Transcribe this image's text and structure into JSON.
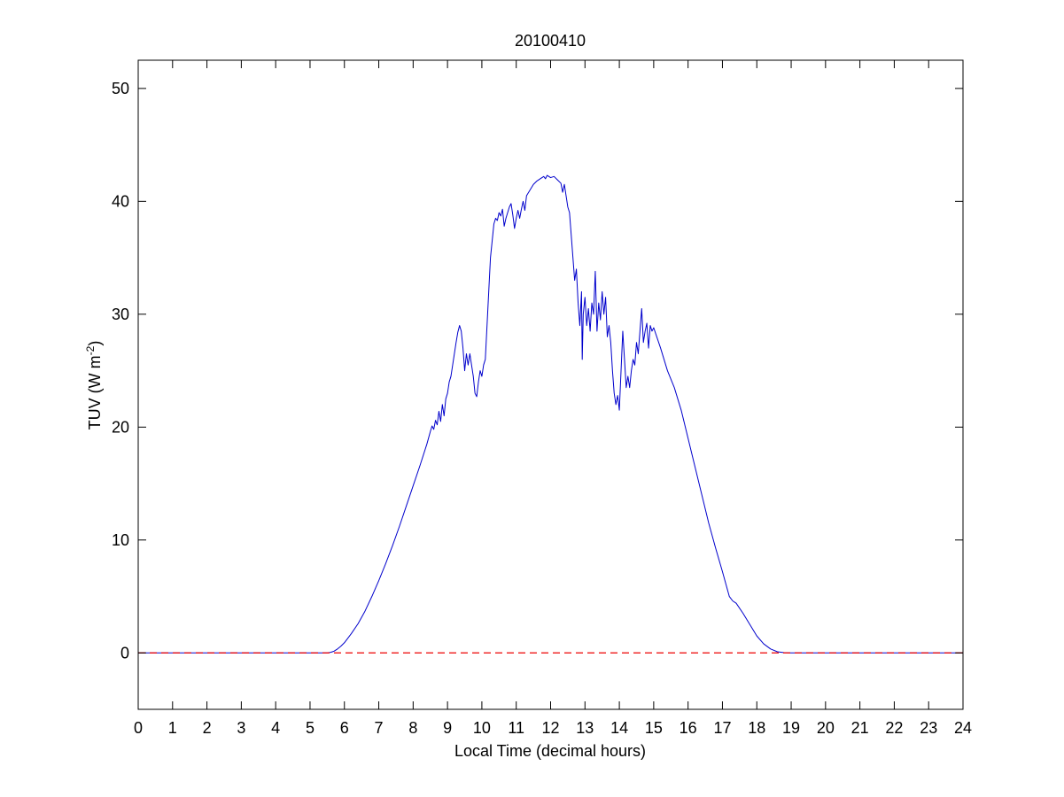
{
  "chart_data": {
    "type": "line",
    "title": "20100410",
    "xlabel": "Local Time (decimal hours)",
    "ylabel_main": "TUV (W m",
    "ylabel_sup": "-2",
    "ylabel_close": ")",
    "xlim": [
      0,
      24
    ],
    "ylim": [
      -5,
      52.5
    ],
    "xticks": [
      0,
      1,
      2,
      3,
      4,
      5,
      6,
      7,
      8,
      9,
      10,
      11,
      12,
      13,
      14,
      15,
      16,
      17,
      18,
      19,
      20,
      21,
      22,
      23,
      24
    ],
    "yticks": [
      0,
      10,
      20,
      30,
      40,
      50
    ],
    "grid": false,
    "series": [
      {
        "style": "solid",
        "color": "#0000cc",
        "points": [
          [
            0,
            0
          ],
          [
            5.0,
            0
          ],
          [
            5.5,
            0
          ],
          [
            5.6,
            0.05
          ],
          [
            5.7,
            0.15
          ],
          [
            5.8,
            0.35
          ],
          [
            5.9,
            0.6
          ],
          [
            6.0,
            0.9
          ],
          [
            6.2,
            1.7
          ],
          [
            6.4,
            2.6
          ],
          [
            6.6,
            3.7
          ],
          [
            6.8,
            5.0
          ],
          [
            7.0,
            6.4
          ],
          [
            7.2,
            7.9
          ],
          [
            7.4,
            9.5
          ],
          [
            7.6,
            11.2
          ],
          [
            7.8,
            13.0
          ],
          [
            8.0,
            14.8
          ],
          [
            8.2,
            16.6
          ],
          [
            8.4,
            18.5
          ],
          [
            8.5,
            19.6
          ],
          [
            8.55,
            20.1
          ],
          [
            8.6,
            19.8
          ],
          [
            8.65,
            20.6
          ],
          [
            8.7,
            20.2
          ],
          [
            8.75,
            21.4
          ],
          [
            8.8,
            20.5
          ],
          [
            8.85,
            22.0
          ],
          [
            8.9,
            21.0
          ],
          [
            8.95,
            22.5
          ],
          [
            9.0,
            23.0
          ],
          [
            9.05,
            24.0
          ],
          [
            9.1,
            24.5
          ],
          [
            9.15,
            25.5
          ],
          [
            9.2,
            26.5
          ],
          [
            9.25,
            27.5
          ],
          [
            9.3,
            28.4
          ],
          [
            9.35,
            29.0
          ],
          [
            9.4,
            28.5
          ],
          [
            9.45,
            27.0
          ],
          [
            9.5,
            25.0
          ],
          [
            9.55,
            26.5
          ],
          [
            9.6,
            25.5
          ],
          [
            9.65,
            26.5
          ],
          [
            9.7,
            25.5
          ],
          [
            9.75,
            24.5
          ],
          [
            9.8,
            23.0
          ],
          [
            9.85,
            22.7
          ],
          [
            9.9,
            24.0
          ],
          [
            9.95,
            25.0
          ],
          [
            10.0,
            24.5
          ],
          [
            10.05,
            25.5
          ],
          [
            10.1,
            26.0
          ],
          [
            10.15,
            29.0
          ],
          [
            10.2,
            32.0
          ],
          [
            10.25,
            35.0
          ],
          [
            10.3,
            36.5
          ],
          [
            10.35,
            38.0
          ],
          [
            10.4,
            38.5
          ],
          [
            10.45,
            38.3
          ],
          [
            10.5,
            39.0
          ],
          [
            10.55,
            38.7
          ],
          [
            10.6,
            39.3
          ],
          [
            10.65,
            37.8
          ],
          [
            10.7,
            38.5
          ],
          [
            10.8,
            39.5
          ],
          [
            10.85,
            39.8
          ],
          [
            10.9,
            38.8
          ],
          [
            10.95,
            37.6
          ],
          [
            11.0,
            38.5
          ],
          [
            11.05,
            39.2
          ],
          [
            11.1,
            38.5
          ],
          [
            11.15,
            39.3
          ],
          [
            11.2,
            40.0
          ],
          [
            11.25,
            39.2
          ],
          [
            11.3,
            40.5
          ],
          [
            11.4,
            41.0
          ],
          [
            11.5,
            41.5
          ],
          [
            11.6,
            41.8
          ],
          [
            11.7,
            42.0
          ],
          [
            11.8,
            42.2
          ],
          [
            11.85,
            42.0
          ],
          [
            11.9,
            42.3
          ],
          [
            12.0,
            42.1
          ],
          [
            12.1,
            42.2
          ],
          [
            12.2,
            41.9
          ],
          [
            12.3,
            41.6
          ],
          [
            12.35,
            40.8
          ],
          [
            12.4,
            41.5
          ],
          [
            12.45,
            40.5
          ],
          [
            12.5,
            39.5
          ],
          [
            12.55,
            39.0
          ],
          [
            12.6,
            37.0
          ],
          [
            12.65,
            35.0
          ],
          [
            12.7,
            33.0
          ],
          [
            12.75,
            34.0
          ],
          [
            12.8,
            31.0
          ],
          [
            12.85,
            29.0
          ],
          [
            12.9,
            32.0
          ],
          [
            12.92,
            26.0
          ],
          [
            12.95,
            30.0
          ],
          [
            13.0,
            31.5
          ],
          [
            13.05,
            29.0
          ],
          [
            13.1,
            30.5
          ],
          [
            13.15,
            28.5
          ],
          [
            13.2,
            31.0
          ],
          [
            13.25,
            30.0
          ],
          [
            13.3,
            33.8
          ],
          [
            13.35,
            28.5
          ],
          [
            13.4,
            31.0
          ],
          [
            13.45,
            29.5
          ],
          [
            13.5,
            32.0
          ],
          [
            13.55,
            30.0
          ],
          [
            13.6,
            31.5
          ],
          [
            13.65,
            28.0
          ],
          [
            13.7,
            29.0
          ],
          [
            13.75,
            27.5
          ],
          [
            13.8,
            25.0
          ],
          [
            13.85,
            23.0
          ],
          [
            13.9,
            22.0
          ],
          [
            13.95,
            22.8
          ],
          [
            14.0,
            21.5
          ],
          [
            14.05,
            25.0
          ],
          [
            14.1,
            28.5
          ],
          [
            14.15,
            26.0
          ],
          [
            14.2,
            23.5
          ],
          [
            14.25,
            24.5
          ],
          [
            14.3,
            23.5
          ],
          [
            14.35,
            25.0
          ],
          [
            14.4,
            26.0
          ],
          [
            14.45,
            25.5
          ],
          [
            14.5,
            27.5
          ],
          [
            14.55,
            26.5
          ],
          [
            14.6,
            28.5
          ],
          [
            14.65,
            30.5
          ],
          [
            14.7,
            27.5
          ],
          [
            14.75,
            28.5
          ],
          [
            14.8,
            29.2
          ],
          [
            14.85,
            27.0
          ],
          [
            14.9,
            29.0
          ],
          [
            14.95,
            28.5
          ],
          [
            15.0,
            28.8
          ],
          [
            15.2,
            27.0
          ],
          [
            15.4,
            25.0
          ],
          [
            15.6,
            23.5
          ],
          [
            15.8,
            21.5
          ],
          [
            16.0,
            19.0
          ],
          [
            16.2,
            16.5
          ],
          [
            16.4,
            14.0
          ],
          [
            16.6,
            11.5
          ],
          [
            16.8,
            9.3
          ],
          [
            17.0,
            7.2
          ],
          [
            17.2,
            5.0
          ],
          [
            17.3,
            4.6
          ],
          [
            17.4,
            4.4
          ],
          [
            17.6,
            3.5
          ],
          [
            17.8,
            2.5
          ],
          [
            18.0,
            1.5
          ],
          [
            18.2,
            0.8
          ],
          [
            18.4,
            0.35
          ],
          [
            18.6,
            0.1
          ],
          [
            18.8,
            0.02
          ],
          [
            19.0,
            0
          ],
          [
            20.0,
            0
          ],
          [
            24.0,
            0
          ]
        ]
      },
      {
        "style": "dashed",
        "color": "#ee0000",
        "points": [
          [
            0,
            0
          ],
          [
            24,
            0
          ]
        ]
      }
    ]
  }
}
